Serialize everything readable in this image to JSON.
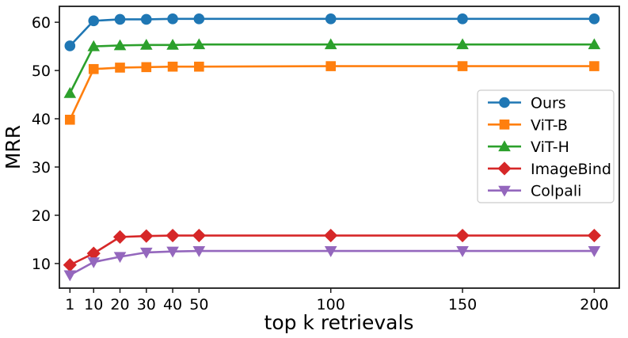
{
  "chart_data": {
    "type": "line",
    "title": "",
    "xlabel": "top k retrievals",
    "ylabel": "MRR",
    "x": [
      1,
      10,
      20,
      30,
      40,
      50,
      100,
      150,
      200
    ],
    "xticks": [
      1,
      10,
      20,
      30,
      40,
      50,
      100,
      150,
      200
    ],
    "yticks": [
      10,
      20,
      30,
      40,
      50,
      60
    ],
    "xlim": [
      -3,
      209.5
    ],
    "ylim": [
      4.9,
      63.3
    ],
    "grid": false,
    "legend_position": "center right",
    "series": [
      {
        "name": "Ours",
        "color": "#1f77b4",
        "marker": "circle",
        "values": [
          55.1,
          60.3,
          60.6,
          60.6,
          60.7,
          60.7,
          60.7,
          60.7,
          60.7
        ]
      },
      {
        "name": "ViT-B",
        "color": "#ff7f0e",
        "marker": "square",
        "values": [
          39.8,
          50.3,
          50.6,
          50.7,
          50.8,
          50.8,
          50.9,
          50.9,
          50.9
        ]
      },
      {
        "name": "ViT-H",
        "color": "#2ca02c",
        "marker": "triangle-up",
        "values": [
          45.3,
          55.0,
          55.2,
          55.3,
          55.3,
          55.4,
          55.4,
          55.4,
          55.4
        ]
      },
      {
        "name": "ImageBind",
        "color": "#d62728",
        "marker": "diamond",
        "values": [
          9.7,
          12.1,
          15.5,
          15.7,
          15.8,
          15.8,
          15.8,
          15.8,
          15.8
        ]
      },
      {
        "name": "Colpali",
        "color": "#9467bd",
        "marker": "triangle-down",
        "values": [
          7.6,
          10.3,
          11.4,
          12.3,
          12.5,
          12.6,
          12.6,
          12.6,
          12.6
        ]
      }
    ],
    "spine_color": "#1a1a1a",
    "legend_border_color": "#cccccc",
    "legend_background": "#ffffff"
  }
}
